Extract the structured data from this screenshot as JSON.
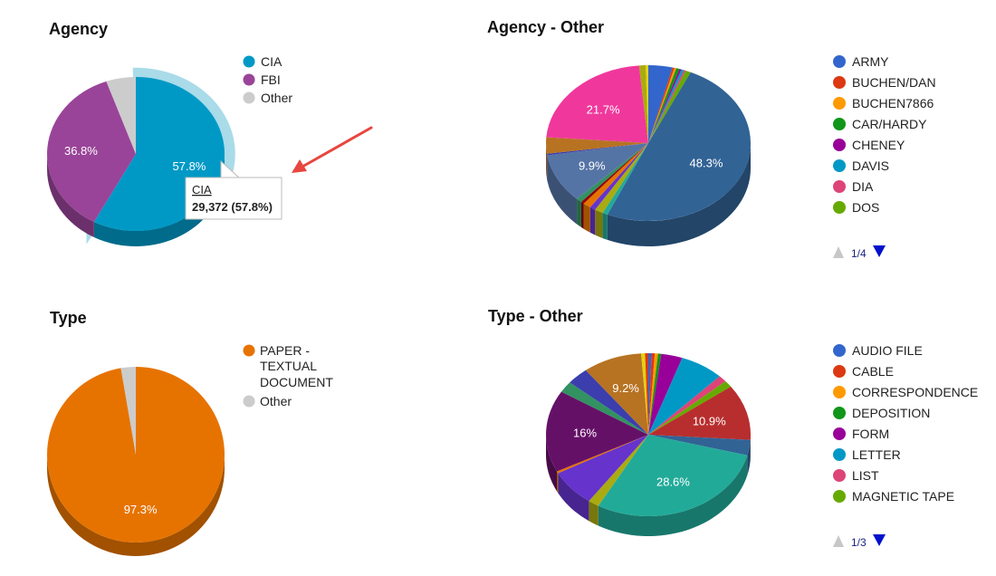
{
  "charts": [
    {
      "title": "Agency",
      "legend": [
        {
          "label": "CIA",
          "color": "#0099c6"
        },
        {
          "label": "FBI",
          "color": "#994499"
        },
        {
          "label": "Other",
          "color": "#cccccc"
        }
      ],
      "tooltip": {
        "name": "CIA",
        "value": "29,372 (57.8%)"
      }
    },
    {
      "title": "Agency - Other",
      "legend": [
        {
          "label": "ARMY",
          "color": "#3366cc"
        },
        {
          "label": "BUCHEN/DAN",
          "color": "#dc3912"
        },
        {
          "label": "BUCHEN7866",
          "color": "#ff9900"
        },
        {
          "label": "CAR/HARDY",
          "color": "#109618"
        },
        {
          "label": "CHENEY",
          "color": "#990099"
        },
        {
          "label": "DAVIS",
          "color": "#0099c6"
        },
        {
          "label": "DIA",
          "color": "#dd4477"
        },
        {
          "label": "DOS",
          "color": "#66aa00"
        }
      ],
      "pager": "1/4"
    },
    {
      "title": "Type",
      "legend": [
        {
          "label": "PAPER - TEXTUAL DOCUMENT",
          "lines": [
            "PAPER -",
            "TEXTUAL",
            "DOCUMENT"
          ],
          "color": "#e67300"
        },
        {
          "label": "Other",
          "color": "#cccccc"
        }
      ]
    },
    {
      "title": "Type - Other",
      "legend": [
        {
          "label": "AUDIO FILE",
          "color": "#3366cc"
        },
        {
          "label": "CABLE",
          "color": "#dc3912"
        },
        {
          "label": "CORRESPONDENCE",
          "color": "#ff9900"
        },
        {
          "label": "DEPOSITION",
          "color": "#109618"
        },
        {
          "label": "FORM",
          "color": "#990099"
        },
        {
          "label": "LETTER",
          "color": "#0099c6"
        },
        {
          "label": "LIST",
          "color": "#dd4477"
        },
        {
          "label": "MAGNETIC TAPE",
          "color": "#66aa00"
        }
      ],
      "pager": "1/3"
    }
  ],
  "chart_data": [
    {
      "type": "pie",
      "title": "Agency",
      "slices": [
        {
          "name": "CIA",
          "value": 57.8,
          "color": "#0099c6",
          "label": "57.8%"
        },
        {
          "name": "FBI",
          "value": 36.8,
          "color": "#994499",
          "label": "36.8%"
        },
        {
          "name": "Other",
          "value": 5.4,
          "color": "#cccccc",
          "label": ""
        }
      ],
      "highlighted": "CIA",
      "legend_position": "right"
    },
    {
      "type": "pie",
      "title": "Agency - Other",
      "slices": [
        {
          "name": "ARMY",
          "value": 3.7,
          "color": "#3366cc",
          "label": ""
        },
        {
          "name": "BUCHEN/DAN",
          "value": 0.3,
          "color": "#dc3912",
          "label": ""
        },
        {
          "name": "BUCHEN7866",
          "value": 0.3,
          "color": "#ff9900",
          "label": ""
        },
        {
          "name": "CAR/HARDY",
          "value": 0.5,
          "color": "#109618",
          "label": ""
        },
        {
          "name": "CHENEY",
          "value": 0.3,
          "color": "#990099",
          "label": ""
        },
        {
          "name": "DAVIS",
          "value": 0.4,
          "color": "#0099c6",
          "label": ""
        },
        {
          "name": "DIA",
          "value": 0.3,
          "color": "#dd4477",
          "label": ""
        },
        {
          "name": "DOS",
          "value": 0.8,
          "color": "#66aa00",
          "label": ""
        },
        {
          "name": "",
          "value": 48.3,
          "color": "#316395",
          "label": "48.3%"
        },
        {
          "name": "",
          "value": 0.8,
          "color": "#22aa99",
          "label": ""
        },
        {
          "name": "",
          "value": 1.3,
          "color": "#aaaa11",
          "label": ""
        },
        {
          "name": "",
          "value": 0.9,
          "color": "#6633cc",
          "label": ""
        },
        {
          "name": "",
          "value": 1.2,
          "color": "#e67300",
          "label": ""
        },
        {
          "name": "",
          "value": 0.5,
          "color": "#8b0707",
          "label": ""
        },
        {
          "name": "",
          "value": 0.9,
          "color": "#329262",
          "label": ""
        },
        {
          "name": "",
          "value": 9.9,
          "color": "#5574a6",
          "label": "9.9%"
        },
        {
          "name": "",
          "value": 0.3,
          "color": "#3b3eac",
          "label": ""
        },
        {
          "name": "",
          "value": 3.3,
          "color": "#b77322",
          "label": ""
        },
        {
          "name": "",
          "value": 21.7,
          "color": "#f0389c",
          "label": "21.7%"
        },
        {
          "name": "",
          "value": 1.0,
          "color": "#aaaa11",
          "label": ""
        },
        {
          "name": "",
          "value": 0.4,
          "color": "#e1d20e",
          "label": ""
        }
      ],
      "legend_position": "right"
    },
    {
      "type": "pie",
      "title": "Type",
      "slices": [
        {
          "name": "PAPER - TEXTUAL DOCUMENT",
          "value": 97.3,
          "color": "#e67300",
          "label": "97.3%"
        },
        {
          "name": "Other",
          "value": 2.7,
          "color": "#cccccc",
          "label": ""
        }
      ],
      "legend_position": "right"
    },
    {
      "type": "pie",
      "title": "Type - Other",
      "slices": [
        {
          "name": "AUDIO FILE",
          "value": 0.5,
          "color": "#3366cc",
          "label": ""
        },
        {
          "name": "CABLE",
          "value": 0.5,
          "color": "#dc3912",
          "label": ""
        },
        {
          "name": "CORRESPONDENCE",
          "value": 0.5,
          "color": "#ff9900",
          "label": ""
        },
        {
          "name": "DEPOSITION",
          "value": 0.5,
          "color": "#109618",
          "label": ""
        },
        {
          "name": "FORM",
          "value": 3.3,
          "color": "#990099",
          "label": ""
        },
        {
          "name": "LETTER",
          "value": 6.8,
          "color": "#0099c6",
          "label": ""
        },
        {
          "name": "LIST",
          "value": 1.3,
          "color": "#dd4477",
          "label": ""
        },
        {
          "name": "MAGNETIC TAPE",
          "value": 1.3,
          "color": "#66aa00",
          "label": ""
        },
        {
          "name": "",
          "value": 10.9,
          "color": "#b82e2e",
          "label": "10.9%"
        },
        {
          "name": "",
          "value": 3.0,
          "color": "#316395",
          "label": ""
        },
        {
          "name": "",
          "value": 28.6,
          "color": "#22aa99",
          "label": "28.6%"
        },
        {
          "name": "",
          "value": 1.7,
          "color": "#aaaa11",
          "label": ""
        },
        {
          "name": "",
          "value": 7.2,
          "color": "#6633cc",
          "label": ""
        },
        {
          "name": "",
          "value": 0.4,
          "color": "#e67300",
          "label": ""
        },
        {
          "name": "",
          "value": 16.0,
          "color": "#651067",
          "label": "16%"
        },
        {
          "name": "",
          "value": 2.2,
          "color": "#329262",
          "label": ""
        },
        {
          "name": "",
          "value": 3.4,
          "color": "#3b3eac",
          "label": ""
        },
        {
          "name": "",
          "value": 9.2,
          "color": "#b77322",
          "label": "9.2%"
        },
        {
          "name": "",
          "value": 0.6,
          "color": "#e1d20e",
          "label": ""
        },
        {
          "name": "",
          "value": 0.5,
          "color": "#dc3912",
          "label": ""
        }
      ],
      "legend_position": "right"
    }
  ]
}
